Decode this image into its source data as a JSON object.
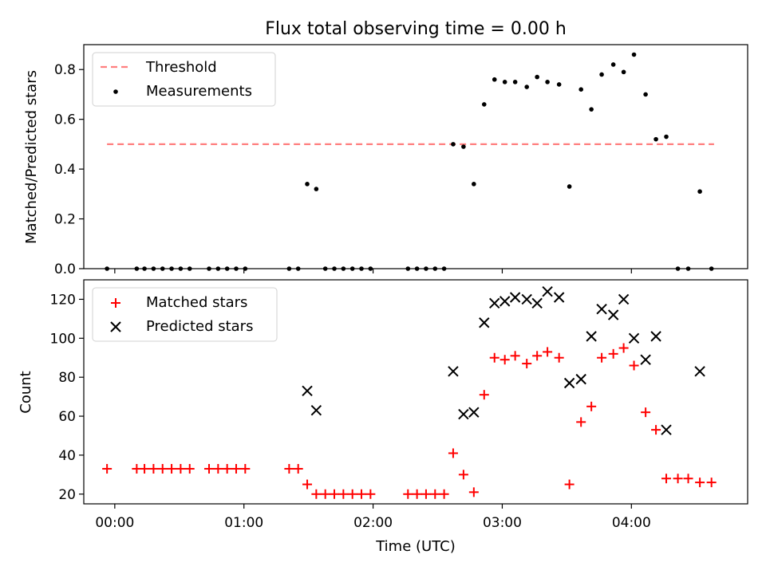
{
  "title": "Flux total observing time = 0.00 h",
  "chart_data": [
    {
      "type": "scatter",
      "panel": "top",
      "ylabel": "Matched/Predicted stars",
      "xlabel": "",
      "x_unit": "hours since 00:00 UTC",
      "xlim": [
        -0.24,
        4.9
      ],
      "ylim": [
        0,
        0.9
      ],
      "yticks": [
        "0.0",
        "0.2",
        "0.4",
        "0.6",
        "0.8"
      ],
      "grid": false,
      "legend_position": "top-left",
      "threshold": {
        "name": "Threshold",
        "y": 0.5,
        "x_range": [
          -0.06,
          4.64
        ],
        "color": "#ff7f7f"
      },
      "series": [
        {
          "name": "Measurements",
          "color": "#000000",
          "marker": "dot",
          "x": [
            -0.06,
            0.17,
            0.23,
            0.3,
            0.37,
            0.44,
            0.51,
            0.58,
            0.73,
            0.8,
            0.87,
            0.94,
            1.01,
            1.35,
            1.42,
            1.49,
            1.56,
            1.63,
            1.7,
            1.77,
            1.84,
            1.91,
            1.98,
            2.27,
            2.34,
            2.41,
            2.48,
            2.55,
            2.62,
            2.7,
            2.78,
            2.86,
            2.94,
            3.02,
            3.1,
            3.19,
            3.27,
            3.35,
            3.44,
            3.52,
            3.61,
            3.69,
            3.77,
            3.86,
            3.94,
            4.02,
            4.11,
            4.19,
            4.27,
            4.36,
            4.44,
            4.53,
            4.62
          ],
          "y": [
            0,
            0,
            0,
            0,
            0,
            0,
            0,
            0,
            0,
            0,
            0,
            0,
            0,
            0,
            0,
            0.34,
            0.32,
            0,
            0,
            0,
            0,
            0,
            0,
            0,
            0,
            0,
            0,
            0,
            0.5,
            0.49,
            0.34,
            0.66,
            0.76,
            0.75,
            0.75,
            0.73,
            0.77,
            0.75,
            0.74,
            0.33,
            0.72,
            0.64,
            0.78,
            0.82,
            0.79,
            0.86,
            0.7,
            0.52,
            0.53,
            0,
            0,
            0.31,
            0
          ]
        }
      ]
    },
    {
      "type": "scatter",
      "panel": "bottom",
      "ylabel": "Count",
      "xlabel": "Time (UTC)",
      "x_unit": "hours since 00:00 UTC",
      "xlim": [
        -0.24,
        4.9
      ],
      "ylim": [
        15,
        130
      ],
      "yticks": [
        "20",
        "40",
        "60",
        "80",
        "100",
        "120"
      ],
      "xticks": {
        "values": [
          0,
          1,
          2,
          3,
          4
        ],
        "labels": [
          "00:00",
          "01:00",
          "02:00",
          "03:00",
          "04:00"
        ]
      },
      "grid": false,
      "legend_position": "top-left",
      "series": [
        {
          "name": "Matched stars",
          "color": "#ff0000",
          "marker": "plus",
          "x": [
            -0.06,
            0.17,
            0.23,
            0.3,
            0.37,
            0.44,
            0.51,
            0.58,
            0.73,
            0.8,
            0.87,
            0.94,
            1.01,
            1.35,
            1.42,
            1.49,
            1.56,
            1.63,
            1.7,
            1.77,
            1.84,
            1.91,
            1.98,
            2.27,
            2.34,
            2.41,
            2.48,
            2.55,
            2.62,
            2.7,
            2.78,
            2.86,
            2.94,
            3.02,
            3.1,
            3.19,
            3.27,
            3.35,
            3.44,
            3.52,
            3.61,
            3.69,
            3.77,
            3.86,
            3.94,
            4.02,
            4.11,
            4.19,
            4.27,
            4.36,
            4.44,
            4.53,
            4.62
          ],
          "y": [
            33,
            33,
            33,
            33,
            33,
            33,
            33,
            33,
            33,
            33,
            33,
            33,
            33,
            33,
            33,
            25,
            20,
            20,
            20,
            20,
            20,
            20,
            20,
            20,
            20,
            20,
            20,
            20,
            41,
            30,
            21,
            71,
            90,
            89,
            91,
            87,
            91,
            93,
            90,
            25,
            57,
            65,
            90,
            92,
            95,
            86,
            62,
            53,
            28,
            28,
            28,
            26,
            26
          ]
        },
        {
          "name": "Predicted stars",
          "color": "#000000",
          "marker": "x",
          "x": [
            1.49,
            1.56,
            2.62,
            2.7,
            2.78,
            2.86,
            2.94,
            3.02,
            3.1,
            3.19,
            3.27,
            3.35,
            3.44,
            3.52,
            3.61,
            3.69,
            3.77,
            3.86,
            3.94,
            4.02,
            4.11,
            4.19,
            4.27,
            4.53
          ],
          "y": [
            73,
            63,
            83,
            61,
            62,
            108,
            118,
            119,
            121,
            120,
            118,
            124,
            121,
            77,
            79,
            101,
            115,
            112,
            120,
            100,
            89,
            101,
            53,
            83
          ]
        }
      ]
    }
  ]
}
